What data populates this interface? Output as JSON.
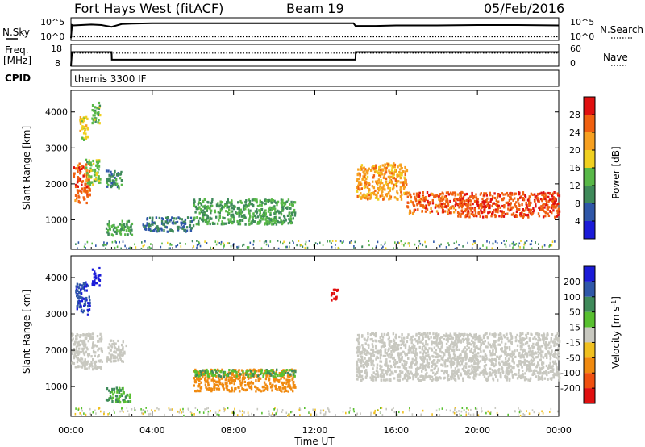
{
  "header": {
    "station": "Fort Hays West (fitACF)",
    "beam": "Beam 19",
    "date": "05/Feb/2016"
  },
  "noise_panel": {
    "left_label": "N.Sky",
    "right_label": "N.Search",
    "left_ticks": [
      "10^5",
      "10^0"
    ],
    "right_ticks": [
      "10^5",
      "10^0"
    ]
  },
  "freq_panel": {
    "left_label_line1": "Freq.",
    "left_label_line2": "[MHz]",
    "left_ticks": [
      "18",
      "8"
    ],
    "right_ticks": [
      "60",
      "0"
    ],
    "right_label": "Nave"
  },
  "cpid": {
    "label": "CPID",
    "mode": "themis 3300 IF"
  },
  "x_axis": {
    "label": "Time UT",
    "ticks": [
      "00:00",
      "04:00",
      "08:00",
      "12:00",
      "16:00",
      "20:00",
      "00:00"
    ]
  },
  "y_axis": {
    "label": "Slant Range [km]",
    "ticks": [
      "1000",
      "2000",
      "3000",
      "4000"
    ]
  },
  "power_colorbar": {
    "label": "Power [dB]",
    "ticks": [
      "4",
      "8",
      "12",
      "16",
      "20",
      "24",
      "28"
    ],
    "colors": [
      "#1b1bd8",
      "#2f57a8",
      "#3f8a5a",
      "#58b848",
      "#f0d020",
      "#f7a020",
      "#f06010",
      "#e01010"
    ]
  },
  "velocity_colorbar": {
    "label": "Velocity [m s",
    "label_sup": "-1",
    "label_close": "]",
    "ticks": [
      "200",
      "100",
      "50",
      "15",
      "-15",
      "-50",
      "-100",
      "-200"
    ],
    "colors": [
      "#1b1bd8",
      "#2f57a8",
      "#3f8a5a",
      "#58c030",
      "#c8c8c0",
      "#f0c020",
      "#f08a10",
      "#f05010",
      "#e01010"
    ]
  },
  "chart_data": [
    {
      "type": "line",
      "title": "Fort Hays West (fitACF)",
      "subtitle": "Beam 19",
      "series": [
        {
          "name": "N.Sky",
          "x": [
            0,
            0.05,
            0.1,
            0.5,
            1.0,
            1.5,
            2.0,
            2.5,
            3.0,
            4.0,
            6.0,
            8.0,
            10.0,
            12.0,
            13.9,
            14.0,
            15.0,
            16.0,
            18.0,
            20.0,
            22.0,
            24.0
          ],
          "y_log10": [
            0.5,
            3.4,
            3.3,
            3.4,
            3.5,
            3.4,
            3.0,
            3.6,
            3.7,
            3.8,
            3.8,
            3.8,
            3.8,
            3.8,
            3.8,
            3.2,
            3.2,
            3.3,
            3.3,
            3.4,
            3.4,
            3.3
          ]
        },
        {
          "name": "N.Search",
          "x": [
            0,
            24
          ],
          "y_log10": [
            0.8,
            0.8
          ]
        }
      ],
      "y_range_log10": [
        0,
        5
      ]
    },
    {
      "type": "line",
      "series": [
        {
          "name": "Freq.",
          "x": [
            0,
            0.05,
            2.0,
            2.01,
            14.0,
            14.01,
            24.0
          ],
          "y": [
            8,
            14.5,
            14.5,
            11,
            11,
            14.5,
            14.5
          ]
        },
        {
          "name": "Nave",
          "x": [
            0,
            24
          ],
          "y": [
            14,
            14
          ]
        }
      ],
      "y_range": [
        8,
        18
      ]
    },
    {
      "type": "scatter",
      "xlabel": "Time UT",
      "ylabel": "Slant Range [km]",
      "colorbar_label": "Power [dB]",
      "xlim": [
        0,
        24
      ],
      "ylim": [
        180,
        4600
      ],
      "regions": [
        {
          "x": [
            0.1,
            0.9
          ],
          "range": [
            1500,
            2600
          ],
          "power_db": 26
        },
        {
          "x": [
            0.4,
            0.8
          ],
          "range": [
            3200,
            3900
          ],
          "power_db": 18
        },
        {
          "x": [
            1.0,
            1.4
          ],
          "range": [
            3700,
            4300
          ],
          "power_db": 14
        },
        {
          "x": [
            0.7,
            1.4
          ],
          "range": [
            2000,
            2700
          ],
          "power_db": 14
        },
        {
          "x": [
            1.7,
            2.5
          ],
          "range": [
            1900,
            2400
          ],
          "power_db": 10
        },
        {
          "x": [
            1.7,
            3.0
          ],
          "range": [
            600,
            1000
          ],
          "power_db": 12
        },
        {
          "x": [
            3.5,
            6.0
          ],
          "range": [
            700,
            1100
          ],
          "power_db": 8
        },
        {
          "x": [
            6.0,
            11.0
          ],
          "range": [
            900,
            1600
          ],
          "power_db": 12
        },
        {
          "x": [
            14.0,
            16.5
          ],
          "range": [
            1600,
            2600
          ],
          "power_db": 22
        },
        {
          "x": [
            16.5,
            19.0
          ],
          "range": [
            1200,
            1800
          ],
          "power_db": 26
        },
        {
          "x": [
            19.0,
            24.0
          ],
          "range": [
            1100,
            1800
          ],
          "power_db": 27
        }
      ]
    },
    {
      "type": "scatter",
      "xlabel": "Time UT",
      "ylabel": "Slant Range [km]",
      "xlim": [
        0,
        24
      ],
      "ylim": [
        180,
        4600
      ],
      "regions": [
        {
          "x": [
            1.0,
            1.4
          ],
          "range": [
            3800,
            4300
          ],
          "velocity": 200
        },
        {
          "x": [
            0.2,
            0.9
          ],
          "range": [
            3000,
            3900
          ],
          "velocity": 150
        },
        {
          "x": [
            0.0,
            1.5
          ],
          "range": [
            1500,
            2500
          ],
          "velocity": 0
        },
        {
          "x": [
            1.7,
            2.7
          ],
          "range": [
            1700,
            2300
          ],
          "velocity": 0
        },
        {
          "x": [
            1.7,
            2.9
          ],
          "range": [
            600,
            1000
          ],
          "velocity": 30
        },
        {
          "x": [
            6.0,
            11.0
          ],
          "range": [
            900,
            1500
          ],
          "velocity": -60
        },
        {
          "x": [
            6.0,
            11.0
          ],
          "range": [
            1300,
            1500
          ],
          "velocity": 30
        },
        {
          "x": [
            12.7,
            13.1
          ],
          "range": [
            3400,
            3700
          ],
          "velocity": -200
        },
        {
          "x": [
            14.0,
            24.0
          ],
          "range": [
            1200,
            2500
          ],
          "velocity": 0
        }
      ]
    }
  ]
}
